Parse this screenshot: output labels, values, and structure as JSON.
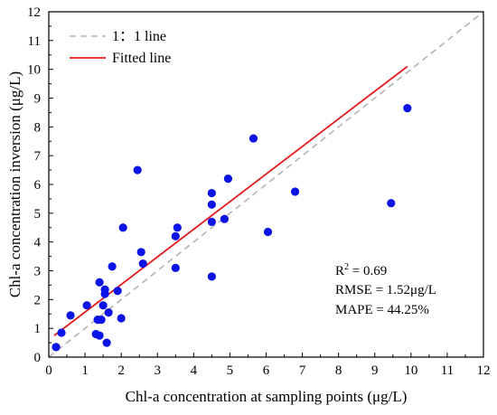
{
  "chart_data": {
    "type": "scatter",
    "xlabel": "Chl-a concentration at sampling points (μg/L)",
    "ylabel": "Chl-a concentration inversion (μg/L)",
    "xlim": [
      0,
      12
    ],
    "ylim": [
      0,
      12
    ],
    "xticks": [
      "0",
      "1",
      "2",
      "3",
      "4",
      "5",
      "6",
      "7",
      "8",
      "9",
      "10",
      "11",
      "12"
    ],
    "yticks": [
      "0",
      "1",
      "2",
      "3",
      "4",
      "5",
      "6",
      "7",
      "8",
      "9",
      "10",
      "11",
      "12"
    ],
    "grid": false,
    "legend": {
      "position": "top-left",
      "entries": [
        {
          "label": "1：1 line",
          "style": "dashed",
          "color": "#b3b3b3"
        },
        {
          "label": "Fitted line",
          "style": "solid",
          "color": "#e41a1c"
        }
      ]
    },
    "reference_line": {
      "x": [
        0,
        12
      ],
      "y": [
        0,
        12
      ]
    },
    "fitted_line": {
      "x": [
        0.15,
        9.9
      ],
      "y": [
        0.75,
        10.1
      ]
    },
    "points_color": "#0a14e6",
    "points": [
      {
        "x": 0.2,
        "y": 0.35
      },
      {
        "x": 0.35,
        "y": 0.85
      },
      {
        "x": 0.6,
        "y": 1.45
      },
      {
        "x": 1.05,
        "y": 1.8
      },
      {
        "x": 1.3,
        "y": 0.8
      },
      {
        "x": 1.35,
        "y": 1.3
      },
      {
        "x": 1.4,
        "y": 0.75
      },
      {
        "x": 1.4,
        "y": 2.6
      },
      {
        "x": 1.45,
        "y": 1.3
      },
      {
        "x": 1.5,
        "y": 1.8
      },
      {
        "x": 1.55,
        "y": 2.2
      },
      {
        "x": 1.55,
        "y": 2.35
      },
      {
        "x": 1.6,
        "y": 0.5
      },
      {
        "x": 1.65,
        "y": 1.55
      },
      {
        "x": 1.75,
        "y": 3.15
      },
      {
        "x": 1.9,
        "y": 2.3
      },
      {
        "x": 2.0,
        "y": 1.35
      },
      {
        "x": 2.05,
        "y": 4.5
      },
      {
        "x": 2.45,
        "y": 6.5
      },
      {
        "x": 2.55,
        "y": 3.65
      },
      {
        "x": 2.6,
        "y": 3.25
      },
      {
        "x": 3.5,
        "y": 3.1
      },
      {
        "x": 3.5,
        "y": 4.2
      },
      {
        "x": 3.55,
        "y": 4.5
      },
      {
        "x": 4.5,
        "y": 2.8
      },
      {
        "x": 4.5,
        "y": 4.7
      },
      {
        "x": 4.5,
        "y": 5.3
      },
      {
        "x": 4.5,
        "y": 5.7
      },
      {
        "x": 4.85,
        "y": 4.8
      },
      {
        "x": 4.95,
        "y": 6.2
      },
      {
        "x": 5.65,
        "y": 7.6
      },
      {
        "x": 6.05,
        "y": 4.35
      },
      {
        "x": 6.8,
        "y": 5.75
      },
      {
        "x": 9.45,
        "y": 5.35
      },
      {
        "x": 9.9,
        "y": 8.65
      }
    ],
    "annotations": {
      "r2_label": "R",
      "r2_sup": "2",
      "r2_value": " = 0.69",
      "rmse": "RMSE = 1.52μg/L",
      "mape": "MAPE = 44.25%"
    }
  }
}
